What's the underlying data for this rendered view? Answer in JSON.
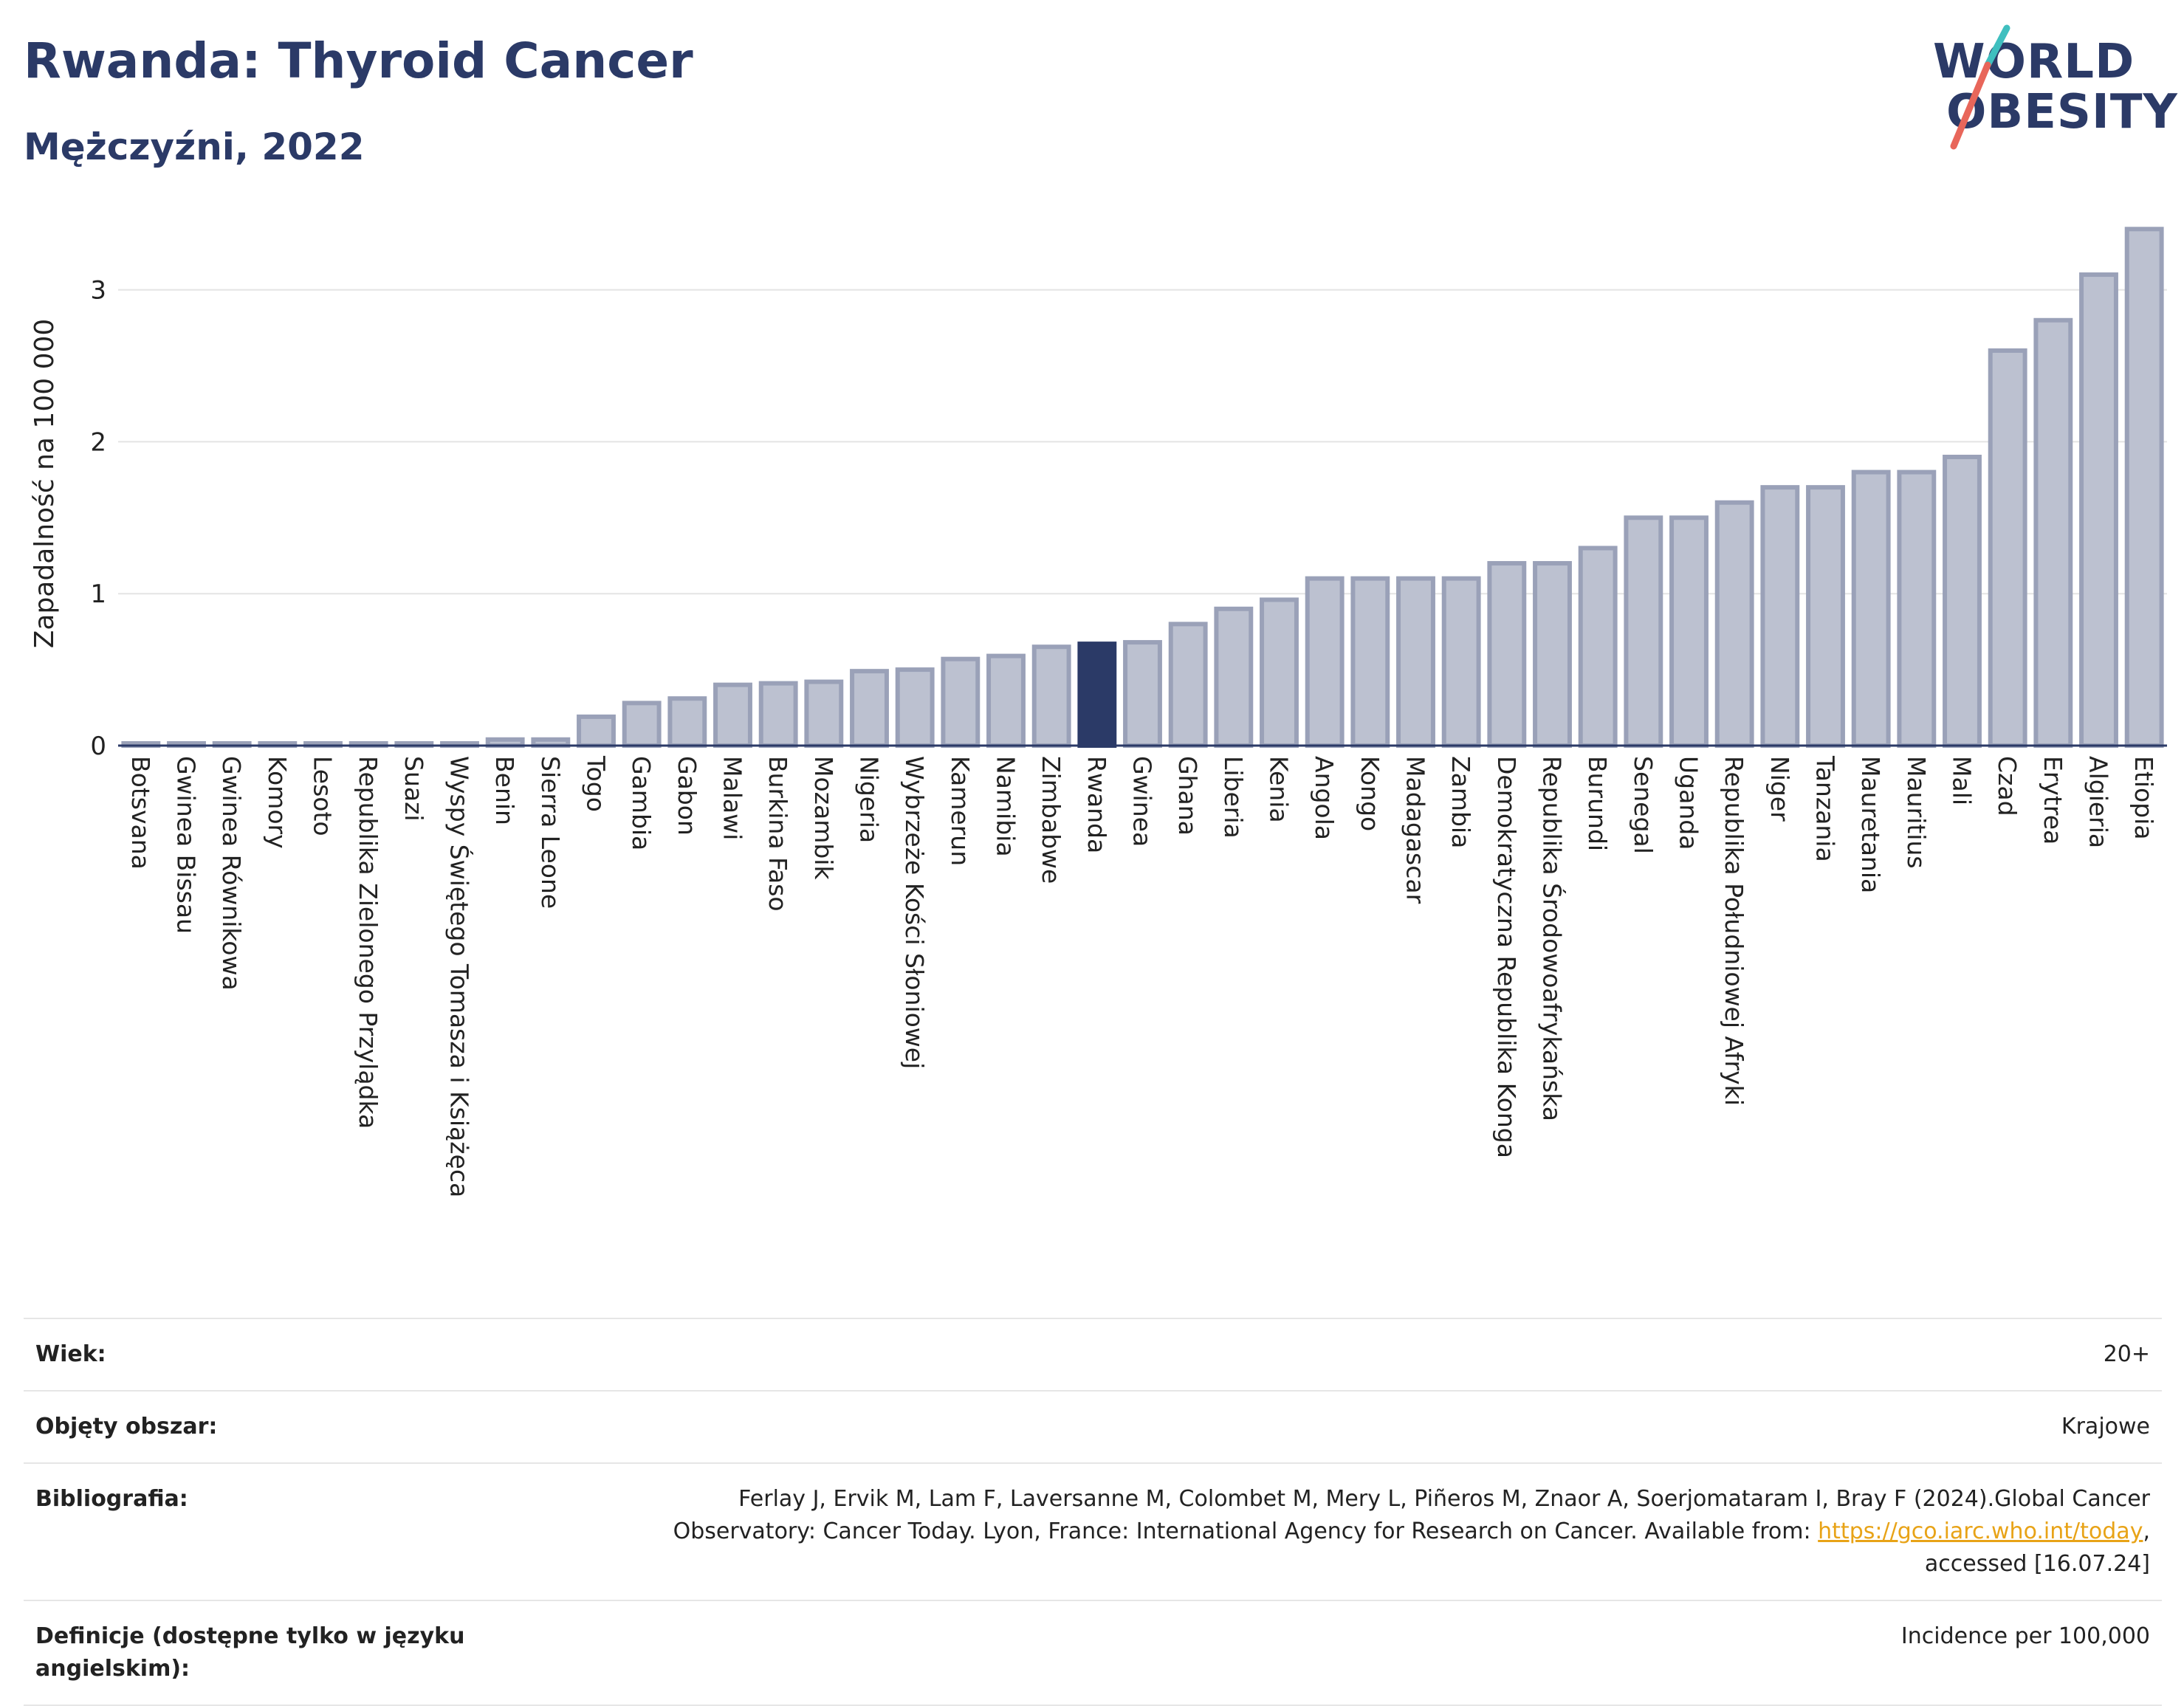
{
  "header": {
    "title": "Rwanda: Thyroid Cancer",
    "subtitle": "Mężczyźni, 2022"
  },
  "logo": {
    "line1": "WORLD",
    "line2": "OBESITY",
    "slash_colors": [
      "#3fbfbf",
      "#e8665a"
    ]
  },
  "chart_data": {
    "type": "bar",
    "ylabel": "Zapadalność na 100 000",
    "ylim": [
      0,
      3.45
    ],
    "yticks": [
      0,
      1,
      2,
      3
    ],
    "grid": true,
    "highlight": "Rwanda",
    "colors": {
      "bar": "#bcc1d0",
      "bar_edge": "#9aa1b8",
      "highlight": "#2b3a67"
    },
    "categories": [
      "Botsvana",
      "Gwinea Bissau",
      "Gwinea Równikowa",
      "Komory",
      "Lesoto",
      "Republika Zielonego Przylądka",
      "Suazi",
      "Wyspy Świętego Tomasza i Książęca",
      "Benin",
      "Sierra Leone",
      "Togo",
      "Gambia",
      "Gabon",
      "Malawi",
      "Burkina Faso",
      "Mozambik",
      "Nigeria",
      "Wybrzeże Kości Słoniowej",
      "Kamerun",
      "Namibia",
      "Zimbabwe",
      "Rwanda",
      "Gwinea",
      "Ghana",
      "Liberia",
      "Kenia",
      "Angola",
      "Kongo",
      "Madagascar",
      "Zambia",
      "Demokratyczna Republika Konga",
      "Republika Środowoafrykańska",
      "Burundi",
      "Senegal",
      "Uganda",
      "Republika Południowej Afryki",
      "Niger",
      "Tanzania",
      "Mauretania",
      "Mauritius",
      "Mali",
      "Czad",
      "Erytrea",
      "Algieria",
      "Etiopia"
    ],
    "values": [
      0,
      0,
      0,
      0,
      0,
      0,
      0,
      0,
      0.04,
      0.04,
      0.19,
      0.28,
      0.31,
      0.4,
      0.41,
      0.42,
      0.49,
      0.5,
      0.57,
      0.59,
      0.65,
      0.67,
      0.68,
      0.8,
      0.9,
      0.96,
      1.1,
      1.1,
      1.1,
      1.1,
      1.2,
      1.2,
      1.3,
      1.5,
      1.5,
      1.6,
      1.7,
      1.7,
      1.8,
      1.8,
      1.9,
      2.6,
      2.8,
      3.1,
      3.4
    ]
  },
  "meta": {
    "age_label": "Wiek:",
    "age_value": "20+",
    "area_label": "Objęty obszar:",
    "area_value": "Krajowe",
    "biblio_label": "Bibliografia:",
    "biblio_text_1": "Ferlay J, Ervik M, Lam F, Laversanne M, Colombet M, Mery L, Piñeros M, Znaor A, Soerjomataram I, Bray F (2024).Global Cancer",
    "biblio_text_2": "Observatory: Cancer Today. Lyon, France: International Agency for Research on Cancer. Available from: ",
    "biblio_link": "https://gco.iarc.who.int/today",
    "biblio_text_3": ",",
    "biblio_text_4": "accessed [16.07.24]",
    "def_label": "Definicje (dostępne tylko w języku angielskim):",
    "def_value": "Incidence per 100,000"
  }
}
